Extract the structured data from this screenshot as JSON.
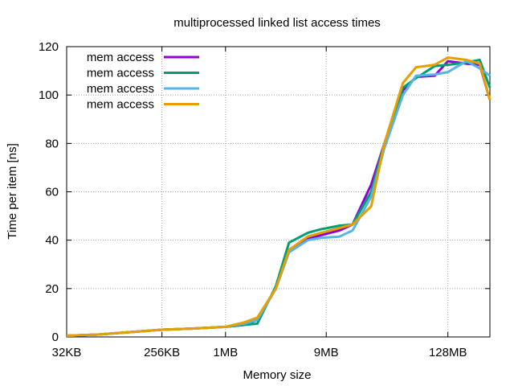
{
  "chart_data": {
    "type": "line",
    "title": "multiprocessed linked list access times",
    "xlabel": "Memory size",
    "ylabel": "Time per item [ns]",
    "x_scale": "log2",
    "x_unit": "KB",
    "xlim": [
      32,
      327680
    ],
    "ylim": [
      0,
      120
    ],
    "yticks": [
      0,
      20,
      40,
      60,
      80,
      100,
      120
    ],
    "xticks": [
      {
        "value": 32,
        "label": "32KB"
      },
      {
        "value": 256,
        "label": "256KB"
      },
      {
        "value": 1024,
        "label": "1MB"
      },
      {
        "value": 9216,
        "label": "9MB"
      },
      {
        "value": 131072,
        "label": "128MB"
      }
    ],
    "grid": true,
    "legend_position": "top-left",
    "x": [
      32,
      64,
      128,
      256,
      512,
      1024,
      1536,
      2048,
      3072,
      4096,
      6144,
      8192,
      12288,
      16384,
      24576,
      32768,
      49152,
      65536,
      98304,
      131072,
      196608,
      262144,
      327680
    ],
    "series": [
      {
        "name": "mem access",
        "color": "#9400d3",
        "values": [
          0.5,
          1.0,
          2.0,
          3.0,
          3.5,
          4.2,
          5.0,
          7.0,
          20.0,
          36.0,
          40.5,
          42.0,
          44.0,
          46.5,
          63.0,
          80.0,
          102.0,
          107.5,
          108.0,
          114.0,
          113.0,
          112.5,
          98.0
        ]
      },
      {
        "name": "mem access",
        "color": "#009e73",
        "values": [
          0.5,
          1.0,
          2.0,
          3.0,
          3.5,
          4.2,
          5.0,
          5.5,
          21.0,
          39.0,
          43.0,
          44.5,
          46.0,
          46.5,
          60.0,
          80.0,
          103.0,
          107.0,
          112.0,
          112.5,
          113.5,
          114.5,
          103.0
        ]
      },
      {
        "name": "mem access",
        "color": "#56b4e9",
        "values": [
          0.5,
          1.0,
          2.0,
          3.0,
          3.5,
          4.2,
          5.5,
          7.0,
          20.0,
          35.0,
          40.0,
          41.0,
          41.5,
          44.0,
          58.0,
          78.0,
          100.0,
          108.0,
          108.5,
          109.5,
          114.0,
          111.0,
          108.0
        ]
      },
      {
        "name": "mem access",
        "color": "#e69f00",
        "values": [
          0.5,
          1.0,
          2.0,
          3.0,
          3.5,
          4.2,
          6.0,
          8.0,
          20.0,
          36.0,
          41.5,
          43.0,
          45.0,
          46.5,
          54.0,
          80.0,
          105.0,
          111.5,
          112.5,
          115.5,
          114.5,
          113.0,
          98.0
        ]
      }
    ]
  }
}
